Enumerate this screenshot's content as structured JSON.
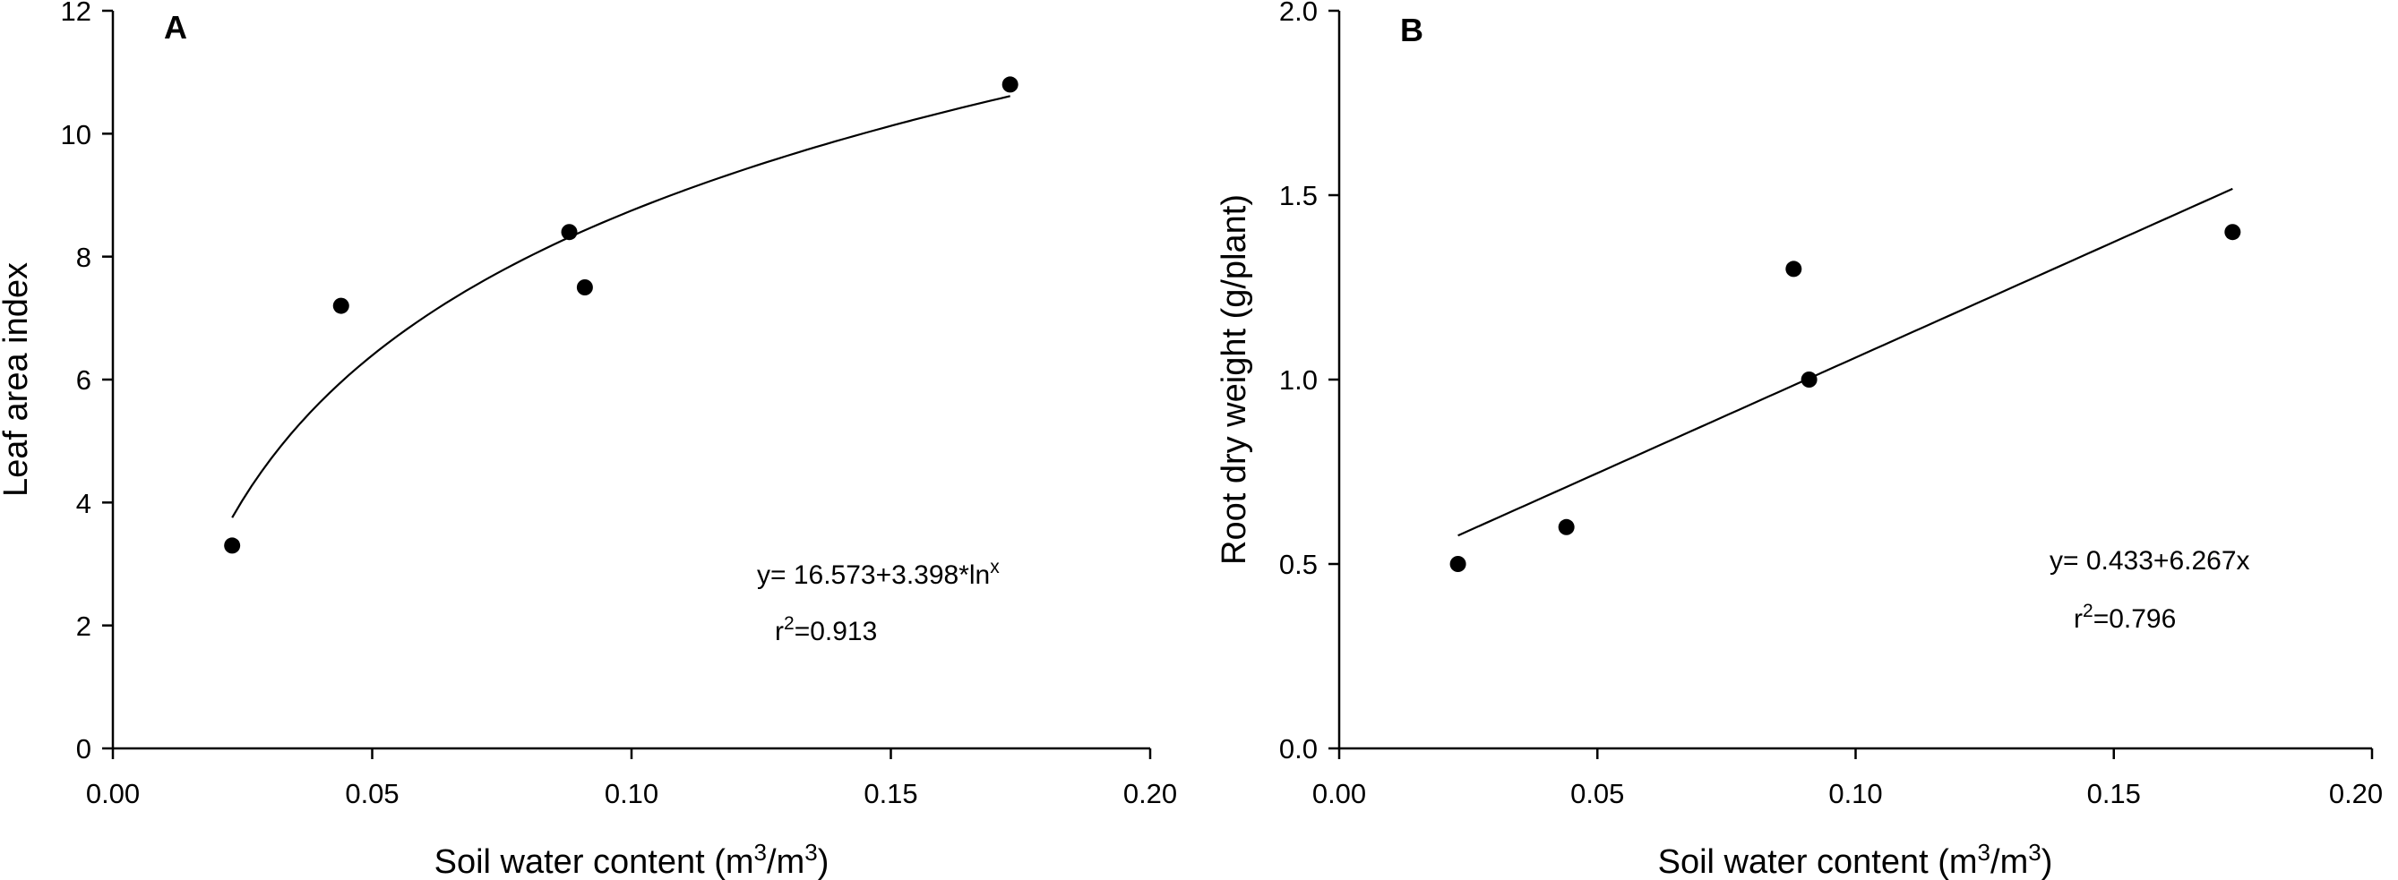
{
  "chart_data": [
    {
      "type": "scatter",
      "panel_label": "A",
      "xlabel": "Soil water content (m3/m3)",
      "xlabel_parts": {
        "prefix": "Soil water content (m",
        "sup1": "3",
        "mid": "/m",
        "sup2": "3",
        "suffix": ")"
      },
      "ylabel": "Leaf area index",
      "xlim": [
        0.0,
        0.2
      ],
      "ylim": [
        0,
        12
      ],
      "x_ticks": [
        "0.00",
        "0.05",
        "0.10",
        "0.15",
        "0.20"
      ],
      "y_ticks": [
        "0",
        "2",
        "4",
        "6",
        "8",
        "10",
        "12"
      ],
      "x_tick_values": [
        0.0,
        0.05,
        0.1,
        0.15,
        0.2
      ],
      "y_tick_values": [
        0,
        2,
        4,
        6,
        8,
        10,
        12
      ],
      "points": [
        {
          "x": 0.023,
          "y": 3.3
        },
        {
          "x": 0.044,
          "y": 7.2
        },
        {
          "x": 0.088,
          "y": 8.4
        },
        {
          "x": 0.091,
          "y": 7.5
        },
        {
          "x": 0.173,
          "y": 10.8
        }
      ],
      "fit": {
        "kind": "log",
        "intercept": 16.573,
        "slope": 3.398,
        "x_from": 0.023,
        "x_to": 0.173
      },
      "equation": {
        "prefix": "y= 16.573+3.398*ln",
        "sup": "x"
      },
      "r2": {
        "r": "r",
        "sup": "2",
        "value": "=0.913"
      },
      "grid": false
    },
    {
      "type": "scatter",
      "panel_label": "B",
      "xlabel": "Soil water content (m3/m3)",
      "xlabel_parts": {
        "prefix": "Soil water content (m",
        "sup1": "3",
        "mid": "/m",
        "sup2": "3",
        "suffix": ")"
      },
      "ylabel": "Root dry weight (g/plant)",
      "xlim": [
        0.0,
        0.2
      ],
      "ylim": [
        0.0,
        2.0
      ],
      "x_ticks": [
        "0.00",
        "0.05",
        "0.10",
        "0.15",
        "0.20"
      ],
      "y_ticks": [
        "0.0",
        "0.5",
        "1.0",
        "1.5",
        "2.0"
      ],
      "x_tick_values": [
        0.0,
        0.05,
        0.1,
        0.15,
        0.2
      ],
      "y_tick_values": [
        0.0,
        0.5,
        1.0,
        1.5,
        2.0
      ],
      "points": [
        {
          "x": 0.023,
          "y": 0.5
        },
        {
          "x": 0.044,
          "y": 0.6
        },
        {
          "x": 0.088,
          "y": 1.3
        },
        {
          "x": 0.091,
          "y": 1.0
        },
        {
          "x": 0.173,
          "y": 1.4
        }
      ],
      "fit": {
        "kind": "linear",
        "intercept": 0.433,
        "slope": 6.267,
        "x_from": 0.023,
        "x_to": 0.173
      },
      "equation": {
        "prefix": "y= 0.433+6.267x",
        "sup": ""
      },
      "r2": {
        "r": "r",
        "sup": "2",
        "value": "=0.796"
      },
      "grid": false
    }
  ]
}
